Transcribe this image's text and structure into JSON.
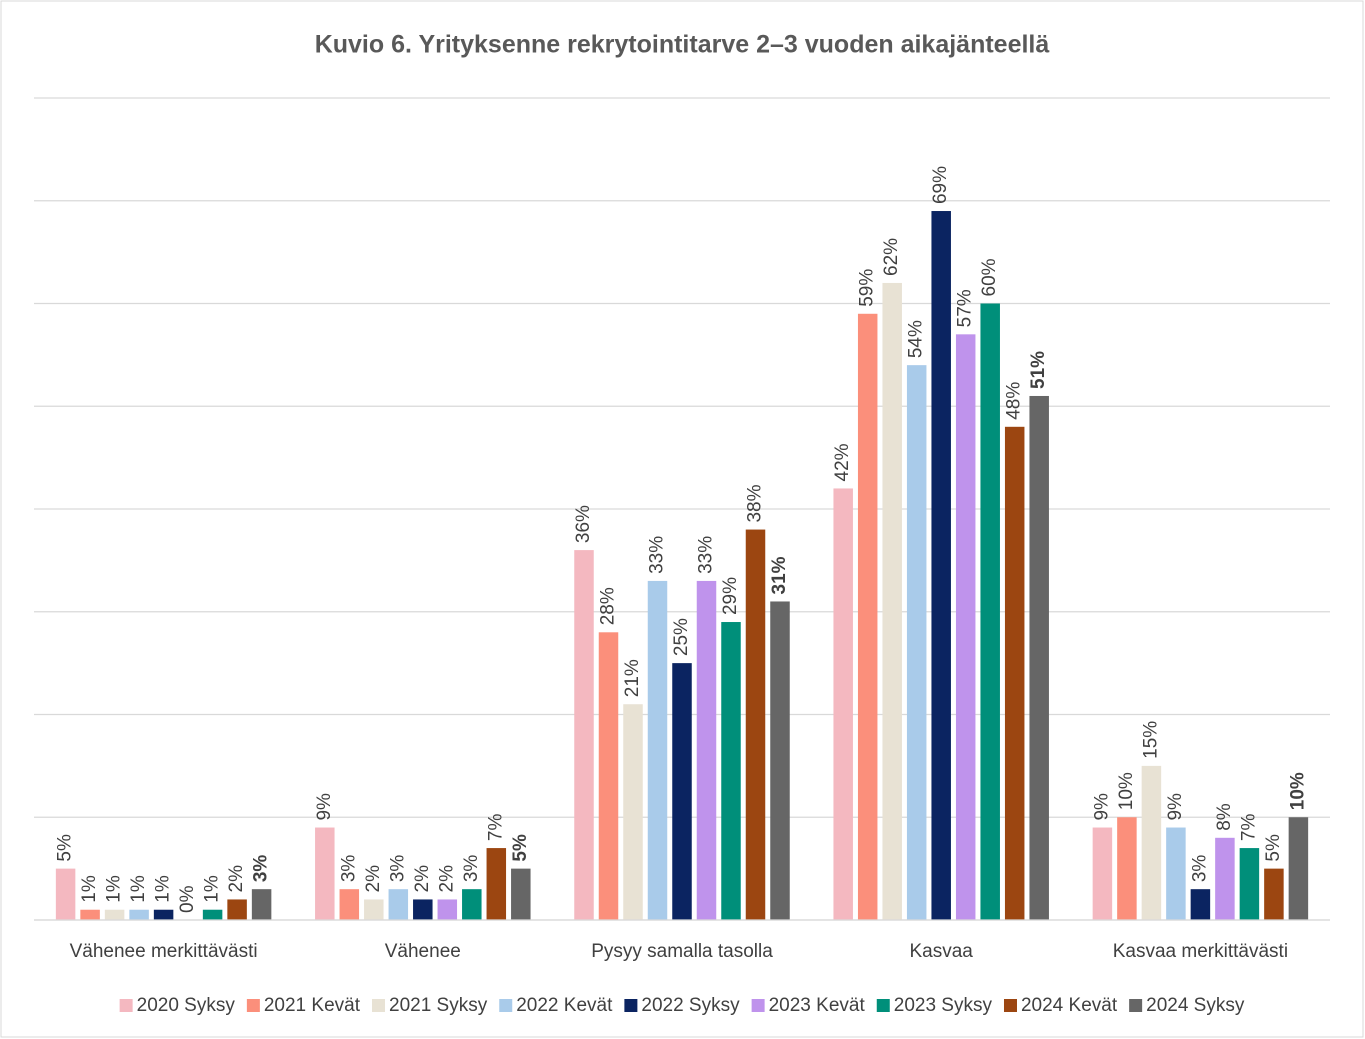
{
  "chart_data": {
    "type": "bar",
    "title": "Kuvio 6. Yrityksenne rekrytointitarve 2–3 vuoden aikajänteellä",
    "categories": [
      "Vähenee merkittävästi",
      "Vähenee",
      "Pysyy samalla tasolla",
      "Kasvaa",
      "Kasvaa merkittävästi"
    ],
    "series": [
      {
        "name": "2020 Syksy",
        "color": "#f4b8c0",
        "values": [
          5,
          9,
          36,
          42,
          9
        ],
        "value_labels": [
          "5%",
          "9%",
          "36%",
          "42%",
          "9%"
        ]
      },
      {
        "name": "2021 Kevät",
        "color": "#fb8f7b",
        "values": [
          1,
          3,
          28,
          59,
          10
        ],
        "value_labels": [
          "1%",
          "3%",
          "28%",
          "59%",
          "10%"
        ]
      },
      {
        "name": "2021 Syksy",
        "color": "#e8e2d4",
        "values": [
          1,
          2,
          21,
          62,
          15
        ],
        "value_labels": [
          "1%",
          "2%",
          "21%",
          "62%",
          "15%"
        ]
      },
      {
        "name": "2022 Kevät",
        "color": "#a9cbea",
        "values": [
          1,
          3,
          33,
          54,
          9
        ],
        "value_labels": [
          "1%",
          "3%",
          "33%",
          "54%",
          "9%"
        ]
      },
      {
        "name": "2022 Syksy",
        "color": "#0b2461",
        "values": [
          1,
          2,
          25,
          69,
          3
        ],
        "value_labels": [
          "1%",
          "2%",
          "25%",
          "69%",
          "3%"
        ]
      },
      {
        "name": "2023 Kevät",
        "color": "#bf93ec",
        "values": [
          0,
          2,
          33,
          57,
          8
        ],
        "value_labels": [
          "0%",
          "2%",
          "33%",
          "57%",
          "8%"
        ]
      },
      {
        "name": "2023 Syksy",
        "color": "#008f7a",
        "values": [
          1,
          3,
          29,
          60,
          7
        ],
        "value_labels": [
          "1%",
          "3%",
          "29%",
          "60%",
          "7%"
        ]
      },
      {
        "name": "2024 Kevät",
        "color": "#9c4611",
        "values": [
          2,
          7,
          38,
          48,
          5
        ],
        "value_labels": [
          "2%",
          "7%",
          "38%",
          "48%",
          "5%"
        ]
      },
      {
        "name": "2024 Syksy",
        "color": "#666666",
        "values": [
          3,
          5,
          31,
          51,
          10
        ],
        "value_labels": [
          "3%",
          "5%",
          "31%",
          "51%",
          "10%"
        ]
      }
    ],
    "ylim": [
      0,
      80
    ],
    "yticks": [
      0,
      10,
      20,
      30,
      40,
      50,
      60,
      70,
      80
    ],
    "grid": true,
    "legend": "bottom"
  }
}
